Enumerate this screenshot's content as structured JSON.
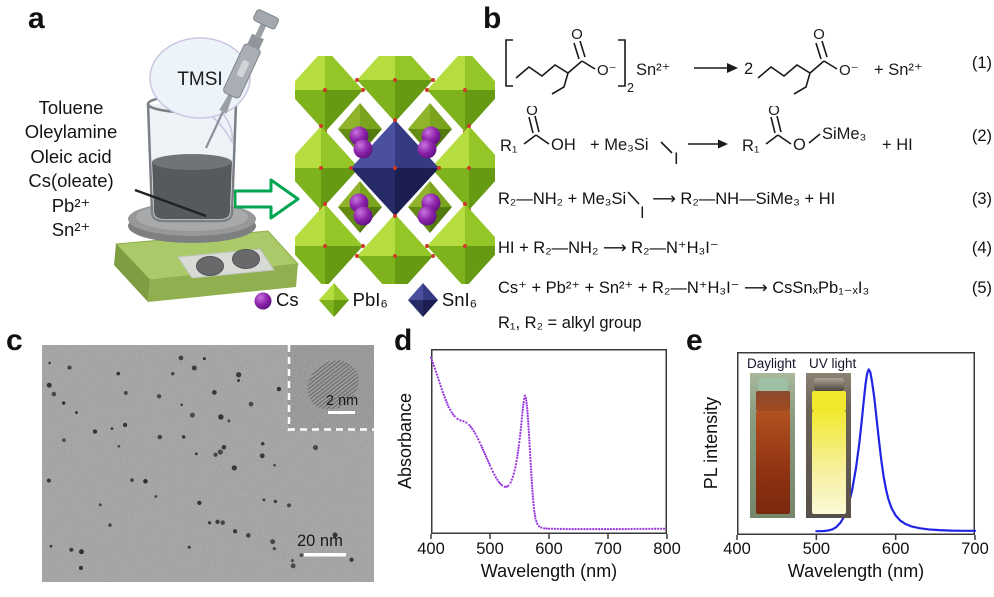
{
  "panel_a": {
    "label": "a",
    "bubble_label": "TMSI",
    "reagents": [
      "Toluene",
      "Oleylamine",
      "Oleic acid",
      "Cs(oleate)",
      "Pb²⁺",
      "Sn²⁺"
    ],
    "legend": [
      {
        "symbol": "cs-sphere",
        "label": "Cs"
      },
      {
        "symbol": "green-octahedron",
        "label": "PbI₆"
      },
      {
        "symbol": "blue-octahedron",
        "label": "SnI₆"
      }
    ],
    "colors": {
      "cs_purple": "#8E24AA",
      "pbi6_green_light": "#b6dd3f",
      "pbi6_green_dark": "#669a13",
      "sni6_blue_light": "#4a4f9e",
      "sni6_blue_dark": "#1b1e4f",
      "arrow_green": "#00A551",
      "hotplate_green": "#aac968"
    }
  },
  "panel_b": {
    "label": "b",
    "eq1": {
      "o": "O",
      "o_minus": "O⁻",
      "sub": "2",
      "sn": "Sn²⁺",
      "coeff": "2",
      "plus_sn": "+ Sn²⁺",
      "num": "(1)"
    },
    "eq2": {
      "r1": "R₁",
      "o": "O",
      "oh": "OH",
      "plus_me3si": "+ Me₃Si",
      "i": "I",
      "r1b": "R₁",
      "o2": "O",
      "o_link": "O",
      "sime3": "SiMe₃",
      "plus_hi": "+ HI",
      "num": "(2)"
    },
    "eq3": {
      "part1": "R₂—NH₂ + Me₃Si",
      "i": "I",
      "part2": "⟶ R₂—NH—SiMe₃ + HI",
      "num": "(3)"
    },
    "eq4": {
      "text": "HI + R₂—NH₂ ⟶ R₂—N⁺H₃I⁻",
      "num": "(4)"
    },
    "eq5": {
      "text": "Cs⁺ + Pb²⁺ + Sn²⁺ + R₂—N⁺H₃I⁻ ⟶ CsSnₓPb₁₋ₓI₃",
      "num": "(5)"
    },
    "note": "R₁, R₂ = alkyl group"
  },
  "panel_c": {
    "label": "c",
    "scale_bar": "20 nm",
    "inset_scale_bar": "2 nm"
  },
  "panel_d": {
    "label": "d"
  },
  "panel_e": {
    "label": "e",
    "photo_labels": [
      "Daylight",
      "UV light"
    ]
  },
  "chart_data": [
    {
      "id": "absorbance",
      "type": "scatter",
      "marker": "dot",
      "color": "#9B3DE0",
      "xlabel": "Wavelength (nm)",
      "ylabel": "Absorbance",
      "xlim": [
        400,
        800
      ],
      "ylim": [
        0,
        1.05
      ],
      "xticks": [
        400,
        500,
        600,
        700,
        800
      ],
      "grid": false,
      "legend_position": "none",
      "points": [
        [
          400,
          1.0
        ],
        [
          405,
          0.955
        ],
        [
          410,
          0.905
        ],
        [
          415,
          0.855
        ],
        [
          420,
          0.805
        ],
        [
          425,
          0.76
        ],
        [
          430,
          0.72
        ],
        [
          435,
          0.69
        ],
        [
          440,
          0.668
        ],
        [
          445,
          0.653
        ],
        [
          450,
          0.645
        ],
        [
          455,
          0.64
        ],
        [
          460,
          0.632
        ],
        [
          465,
          0.618
        ],
        [
          470,
          0.597
        ],
        [
          475,
          0.57
        ],
        [
          480,
          0.538
        ],
        [
          485,
          0.503
        ],
        [
          490,
          0.465
        ],
        [
          495,
          0.427
        ],
        [
          500,
          0.389
        ],
        [
          505,
          0.353
        ],
        [
          510,
          0.321
        ],
        [
          515,
          0.295
        ],
        [
          520,
          0.277
        ],
        [
          525,
          0.268
        ],
        [
          528,
          0.268
        ],
        [
          531,
          0.274
        ],
        [
          535,
          0.292
        ],
        [
          539,
          0.325
        ],
        [
          543,
          0.378
        ],
        [
          546,
          0.432
        ],
        [
          549,
          0.503
        ],
        [
          551,
          0.558
        ],
        [
          553,
          0.622
        ],
        [
          555,
          0.69
        ],
        [
          557,
          0.748
        ],
        [
          559,
          0.785
        ],
        [
          561,
          0.772
        ],
        [
          563,
          0.715
        ],
        [
          565,
          0.625
        ],
        [
          567,
          0.515
        ],
        [
          569,
          0.398
        ],
        [
          571,
          0.289
        ],
        [
          573,
          0.198
        ],
        [
          575,
          0.131
        ],
        [
          577,
          0.088
        ],
        [
          580,
          0.058
        ],
        [
          583,
          0.044
        ],
        [
          587,
          0.036
        ],
        [
          592,
          0.032
        ],
        [
          600,
          0.03
        ],
        [
          615,
          0.029
        ],
        [
          630,
          0.028
        ],
        [
          650,
          0.028
        ],
        [
          670,
          0.028
        ],
        [
          690,
          0.028
        ],
        [
          710,
          0.028
        ],
        [
          730,
          0.028
        ],
        [
          750,
          0.029
        ],
        [
          770,
          0.029
        ],
        [
          790,
          0.03
        ],
        [
          800,
          0.03
        ]
      ]
    },
    {
      "id": "pl",
      "type": "line",
      "color": "#1F25E3",
      "xlabel": "Wavelength (nm)",
      "ylabel": "PL intensity",
      "xlim": [
        400,
        700
      ],
      "ylim": [
        0,
        1.05
      ],
      "xticks": [
        400,
        500,
        600,
        700
      ],
      "grid": false,
      "legend_position": "none",
      "peak_nm": 565,
      "points": [
        [
          500,
          0.022
        ],
        [
          505,
          0.022
        ],
        [
          510,
          0.023
        ],
        [
          515,
          0.026
        ],
        [
          520,
          0.032
        ],
        [
          525,
          0.045
        ],
        [
          530,
          0.068
        ],
        [
          535,
          0.105
        ],
        [
          540,
          0.165
        ],
        [
          545,
          0.255
        ],
        [
          550,
          0.385
        ],
        [
          554,
          0.52
        ],
        [
          557,
          0.645
        ],
        [
          560,
          0.78
        ],
        [
          562,
          0.865
        ],
        [
          564,
          0.925
        ],
        [
          566,
          0.95
        ],
        [
          568,
          0.935
        ],
        [
          570,
          0.885
        ],
        [
          573,
          0.79
        ],
        [
          576,
          0.665
        ],
        [
          579,
          0.54
        ],
        [
          582,
          0.425
        ],
        [
          585,
          0.33
        ],
        [
          588,
          0.258
        ],
        [
          591,
          0.203
        ],
        [
          595,
          0.152
        ],
        [
          600,
          0.112
        ],
        [
          606,
          0.082
        ],
        [
          612,
          0.064
        ],
        [
          620,
          0.049
        ],
        [
          630,
          0.039
        ],
        [
          642,
          0.032
        ],
        [
          655,
          0.028
        ],
        [
          670,
          0.025
        ],
        [
          685,
          0.024
        ],
        [
          700,
          0.024
        ]
      ]
    }
  ]
}
